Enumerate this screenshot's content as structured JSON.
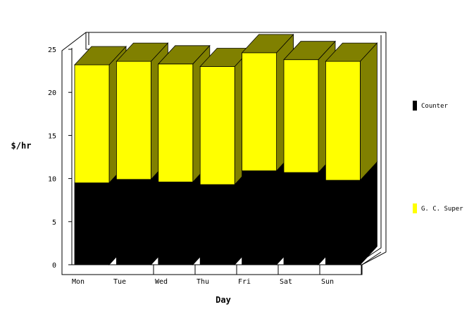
{
  "chart_data": {
    "type": "bar",
    "stacked": true,
    "three_d": true,
    "categories": [
      "Mon",
      "Tue",
      "Wed",
      "Thu",
      "Fri",
      "Sat",
      "Sun"
    ],
    "series": [
      {
        "name": "Counter",
        "values": [
          9.5,
          9.9,
          9.6,
          9.3,
          10.9,
          10.7,
          9.8
        ],
        "color": "#000000"
      },
      {
        "name": "G. C. Super",
        "values": [
          13.7,
          13.7,
          13.7,
          13.7,
          13.7,
          13.1,
          13.8
        ],
        "color": "#FFFF00"
      }
    ],
    "side_colors": {
      "Counter": "#000000",
      "G. C. Super": "#808000"
    },
    "xlabel": "Day",
    "ylabel": "$/hr",
    "ylim": [
      0,
      25
    ],
    "yticks": [
      0,
      5,
      10,
      15,
      20,
      25
    ],
    "legend_position": "right"
  }
}
